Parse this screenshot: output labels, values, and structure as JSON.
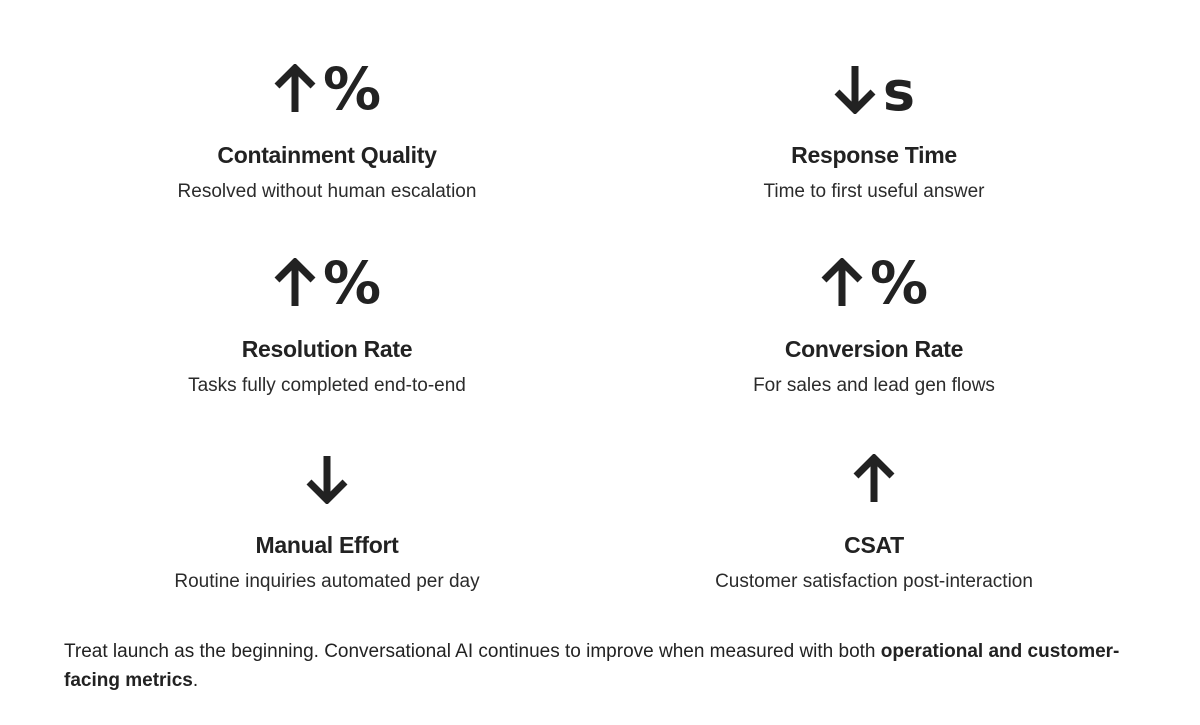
{
  "metrics": [
    {
      "arrow": "up",
      "symbol": "%",
      "title": "Containment Quality",
      "description": "Resolved without human escalation"
    },
    {
      "arrow": "down",
      "symbol": "s",
      "title": "Response Time",
      "description": "Time to first useful answer"
    },
    {
      "arrow": "up",
      "symbol": "%",
      "title": "Resolution Rate",
      "description": "Tasks fully completed end-to-end"
    },
    {
      "arrow": "up",
      "symbol": "%",
      "title": "Conversion Rate",
      "description": "For sales and lead gen flows"
    },
    {
      "arrow": "down",
      "symbol": "",
      "title": "Manual Effort",
      "description": "Routine inquiries automated per day"
    },
    {
      "arrow": "up",
      "symbol": "",
      "title": "CSAT",
      "description": "Customer satisfaction post-interaction"
    }
  ],
  "footnote": {
    "text": "Treat launch as the beginning. Conversational AI continues to improve when measured with both ",
    "emphasis": "operational and customer-facing metrics",
    "end": "."
  },
  "colors": {
    "text": "#222222",
    "background": "#ffffff"
  },
  "icons": {
    "up": "arrow-up-icon",
    "down": "arrow-down-icon"
  }
}
